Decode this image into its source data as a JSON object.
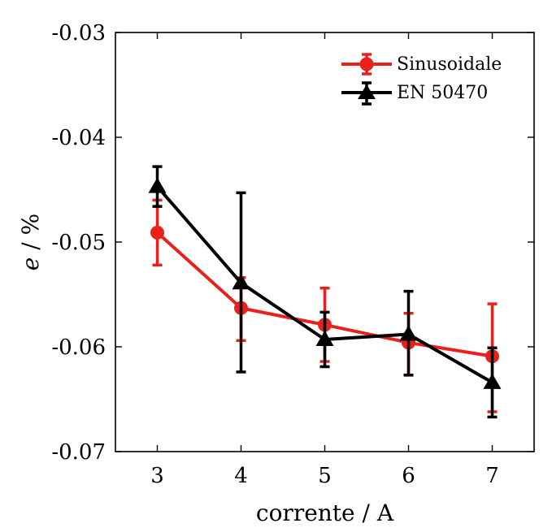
{
  "chart_data": {
    "type": "line",
    "xlabel": "corrente / A",
    "ylabel_symbol": "e",
    "ylabel_unit": " / %",
    "x": [
      3,
      4,
      5,
      6,
      7
    ],
    "xlim": [
      2.5,
      7.5
    ],
    "ylim": [
      -0.07,
      -0.03
    ],
    "xticks": [
      3,
      4,
      5,
      6,
      7
    ],
    "xtick_labels": [
      "3",
      "4",
      "5",
      "6",
      "7"
    ],
    "yticks": [
      -0.03,
      -0.04,
      -0.05,
      -0.06,
      -0.07
    ],
    "ytick_labels": [
      "-0.03",
      "-0.04",
      "-0.05",
      "-0.06",
      "-0.07"
    ],
    "grid": false,
    "legend_position": "top-right",
    "series": [
      {
        "name": "Sinusoidale",
        "color": "#e8211d",
        "marker": "circle",
        "values": [
          -0.0491,
          -0.0563,
          -0.0579,
          -0.0596,
          -0.0609
        ],
        "err_low": [
          -0.0522,
          -0.0594,
          -0.0614,
          -0.0627,
          -0.0662
        ],
        "err_high": [
          -0.046,
          -0.0534,
          -0.0544,
          -0.0568,
          -0.0559
        ]
      },
      {
        "name": "EN 50470",
        "color": "#000000",
        "marker": "triangle",
        "values": [
          -0.0447,
          -0.0539,
          -0.0593,
          -0.0588,
          -0.0634
        ],
        "err_low": [
          -0.0466,
          -0.0624,
          -0.0619,
          -0.0627,
          -0.0667
        ],
        "err_high": [
          -0.0428,
          -0.0453,
          -0.0567,
          -0.0547,
          -0.0601
        ]
      }
    ]
  }
}
